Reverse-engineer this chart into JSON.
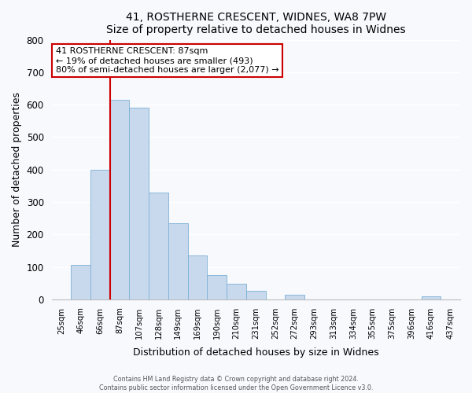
{
  "title": "41, ROSTHERNE CRESCENT, WIDNES, WA8 7PW",
  "subtitle": "Size of property relative to detached houses in Widnes",
  "xlabel": "Distribution of detached houses by size in Widnes",
  "ylabel": "Number of detached properties",
  "bar_labels": [
    "25sqm",
    "46sqm",
    "66sqm",
    "87sqm",
    "107sqm",
    "128sqm",
    "149sqm",
    "169sqm",
    "190sqm",
    "210sqm",
    "231sqm",
    "252sqm",
    "272sqm",
    "293sqm",
    "313sqm",
    "334sqm",
    "355sqm",
    "375sqm",
    "396sqm",
    "416sqm",
    "437sqm"
  ],
  "bar_values": [
    0,
    105,
    400,
    615,
    590,
    330,
    235,
    135,
    75,
    48,
    25,
    0,
    15,
    0,
    0,
    0,
    0,
    0,
    0,
    8,
    0
  ],
  "bar_color": "#c8d9ee",
  "bar_edge_color": "#7bafd4",
  "highlight_line_index": 3,
  "highlight_color": "#cc0000",
  "ylim": [
    0,
    800
  ],
  "yticks": [
    0,
    100,
    200,
    300,
    400,
    500,
    600,
    700,
    800
  ],
  "annotation_title": "41 ROSTHERNE CRESCENT: 87sqm",
  "annotation_line1": "← 19% of detached houses are smaller (493)",
  "annotation_line2": "80% of semi-detached houses are larger (2,077) →",
  "box_facecolor": "#ffffff",
  "box_edgecolor": "#cc0000",
  "footer_line1": "Contains HM Land Registry data © Crown copyright and database right 2024.",
  "footer_line2": "Contains public sector information licensed under the Open Government Licence v3.0.",
  "fig_facecolor": "#f7f9fd",
  "plot_facecolor": "#f7f9fd",
  "grid_color": "#ffffff"
}
